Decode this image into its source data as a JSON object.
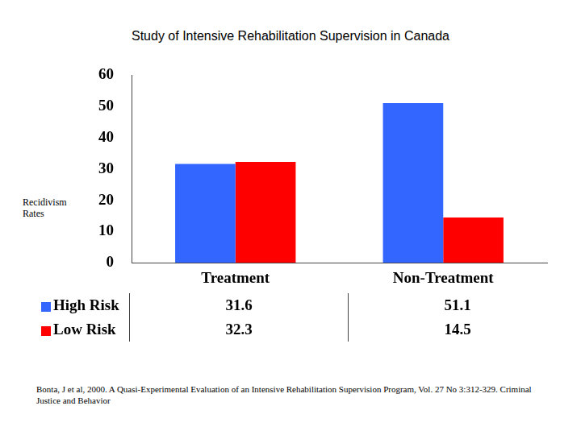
{
  "chart_data": {
    "type": "bar",
    "title": "Study of Intensive Rehabilitation Supervision in Canada",
    "y_label": "Recidivism Rates",
    "categories": [
      "Treatment",
      "Non-Treatment"
    ],
    "series": [
      {
        "name": "High Risk",
        "color": "#3366ff",
        "values": [
          31.6,
          51.1
        ]
      },
      {
        "name": "Low Risk",
        "color": "#ff0000",
        "values": [
          32.3,
          14.5
        ]
      }
    ],
    "ylim": [
      0,
      60
    ],
    "yticks": [
      0,
      10,
      20,
      30,
      40,
      50,
      60
    ],
    "grid": false,
    "source": "Bonta, J et al, 2000. A Quasi-Experimental Evaluation of an Intensive Rehabilitation Supervision Program, Vol. 27 No 3:312-329. Criminal Justice and Behavior"
  }
}
